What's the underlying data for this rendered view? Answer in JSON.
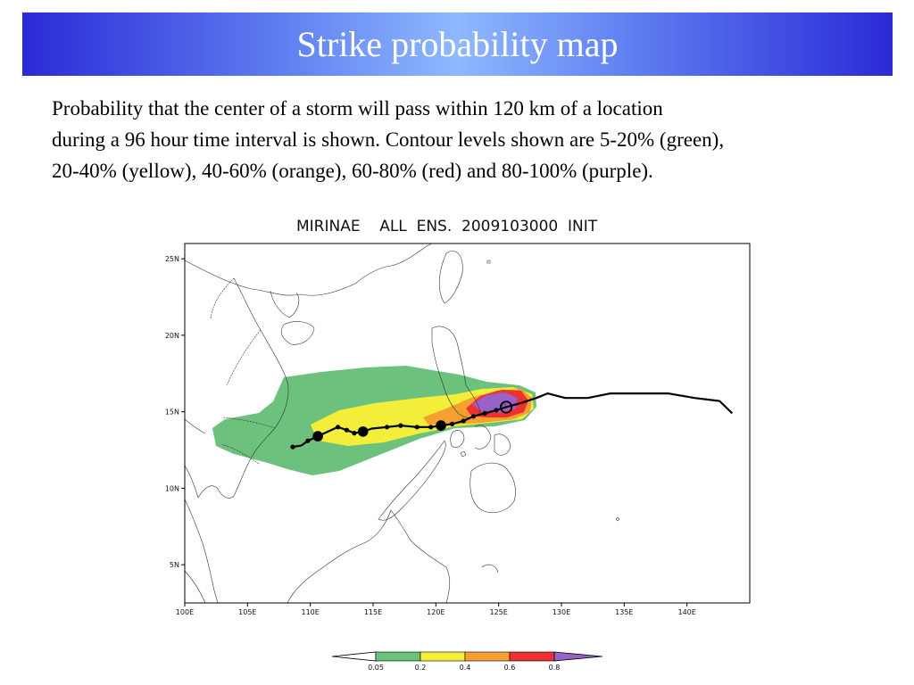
{
  "slide": {
    "title": "Strike probability map",
    "description_lines": [
      "Probability that the center of a storm will pass within 120 km of a location",
      "during a 96 hour time interval is shown. Contour levels shown are 5-20% (green),",
      "20-40% (yellow), 40-60% (orange), 60-80% (red) and 80-100% (purple)."
    ]
  },
  "map": {
    "header": "MIRINAE    ALL  ENS.  2009103000  INIT",
    "lon_range": [
      100,
      145
    ],
    "lat_range": [
      2.5,
      26
    ],
    "lon_ticks": [
      {
        "value": 100,
        "label": "100E"
      },
      {
        "value": 105,
        "label": "105E"
      },
      {
        "value": 110,
        "label": "110E"
      },
      {
        "value": 115,
        "label": "115E"
      },
      {
        "value": 120,
        "label": "120E"
      },
      {
        "value": 125,
        "label": "125E"
      },
      {
        "value": 130,
        "label": "130E"
      },
      {
        "value": 135,
        "label": "135E"
      },
      {
        "value": 140,
        "label": "140E"
      }
    ],
    "lat_ticks": [
      {
        "value": 25,
        "label": "25N"
      },
      {
        "value": 20,
        "label": "20N"
      },
      {
        "value": 15,
        "label": "15N"
      },
      {
        "value": 10,
        "label": "10N"
      },
      {
        "value": 5,
        "label": "5N"
      }
    ],
    "levels": [
      {
        "range": "0.05-0.2",
        "color": "#6cc27c"
      },
      {
        "range": "0.2-0.4",
        "color": "#f2ee3a"
      },
      {
        "range": "0.4-0.6",
        "color": "#f5a030"
      },
      {
        "range": "0.6-0.8",
        "color": "#ee3030"
      },
      {
        "range": "0.8-1",
        "color": "#9a62c8"
      }
    ],
    "track_color": "#000000",
    "track": [
      [
        108.6,
        12.7
      ],
      [
        109.3,
        12.8
      ],
      [
        109.8,
        13.1
      ],
      [
        110.6,
        13.4
      ],
      [
        111.4,
        13.7
      ],
      [
        112.2,
        14.0
      ],
      [
        112.9,
        13.8
      ],
      [
        113.5,
        13.6
      ],
      [
        114.2,
        13.7
      ],
      [
        114.9,
        13.9
      ],
      [
        116.1,
        14.0
      ],
      [
        117.2,
        14.1
      ],
      [
        118.5,
        14.0
      ],
      [
        119.6,
        14.0
      ],
      [
        120.4,
        14.1
      ],
      [
        121.3,
        14.2
      ],
      [
        122.2,
        14.4
      ],
      [
        123.0,
        14.7
      ],
      [
        123.9,
        14.9
      ],
      [
        124.8,
        15.1
      ],
      [
        125.6,
        15.3
      ],
      [
        126.9,
        15.6
      ],
      [
        128.0,
        15.9
      ],
      [
        128.9,
        16.2
      ],
      [
        130.3,
        15.9
      ],
      [
        132.1,
        15.9
      ],
      [
        133.9,
        16.2
      ],
      [
        136.0,
        16.2
      ],
      [
        138.5,
        16.2
      ],
      [
        140.6,
        15.9
      ],
      [
        142.6,
        15.7
      ],
      [
        143.6,
        14.9
      ]
    ],
    "track_markers": [
      {
        "lon": 108.6,
        "lat": 12.7,
        "size": "small"
      },
      {
        "lon": 109.8,
        "lat": 13.1,
        "size": "small"
      },
      {
        "lon": 110.6,
        "lat": 13.4,
        "size": "large"
      },
      {
        "lon": 112.2,
        "lat": 14.0,
        "size": "small"
      },
      {
        "lon": 112.9,
        "lat": 13.8,
        "size": "small"
      },
      {
        "lon": 113.5,
        "lat": 13.6,
        "size": "small"
      },
      {
        "lon": 114.2,
        "lat": 13.7,
        "size": "large"
      },
      {
        "lon": 116.1,
        "lat": 14.0,
        "size": "small"
      },
      {
        "lon": 117.2,
        "lat": 14.1,
        "size": "small"
      },
      {
        "lon": 118.5,
        "lat": 14.0,
        "size": "small"
      },
      {
        "lon": 119.6,
        "lat": 14.0,
        "size": "small"
      },
      {
        "lon": 120.4,
        "lat": 14.1,
        "size": "large"
      },
      {
        "lon": 121.3,
        "lat": 14.2,
        "size": "small"
      },
      {
        "lon": 122.2,
        "lat": 14.4,
        "size": "small"
      },
      {
        "lon": 123.0,
        "lat": 14.7,
        "size": "small"
      },
      {
        "lon": 123.9,
        "lat": 14.9,
        "size": "small"
      },
      {
        "lon": 124.8,
        "lat": 15.1,
        "size": "small"
      },
      {
        "lon": 125.6,
        "lat": 15.3,
        "size": "open"
      }
    ],
    "colorbar": {
      "labels": [
        "0.05",
        "0.2",
        "0.4",
        "0.6",
        "0.8"
      ],
      "colors": [
        "#6cc27c",
        "#f2ee3a",
        "#f5a030",
        "#ee3030",
        "#9a62c8"
      ]
    }
  }
}
